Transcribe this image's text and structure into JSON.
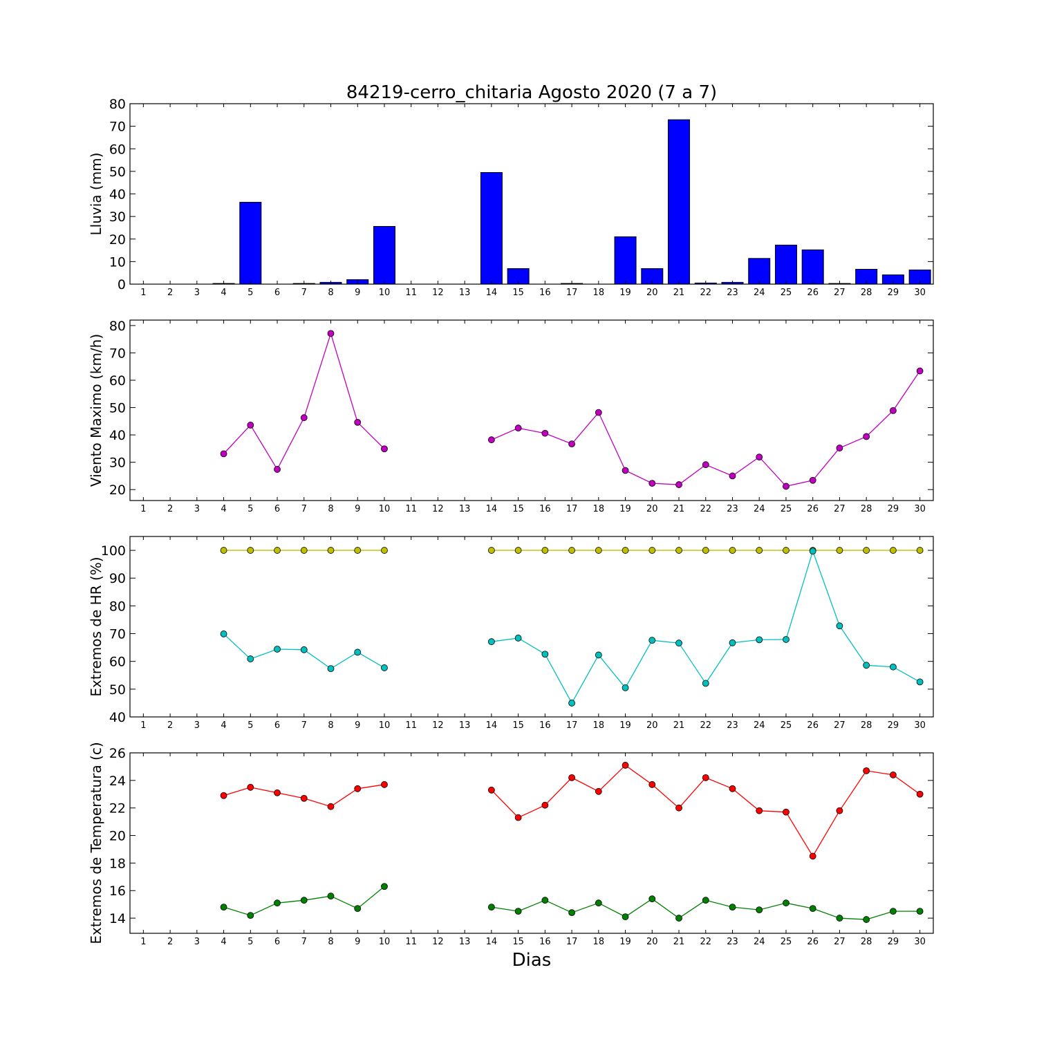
{
  "title": "84219-cerro_chitaria Agosto 2020  (7 a 7)",
  "xlabel": "Dias",
  "chart_data": [
    {
      "type": "bar",
      "ylabel": "Lluvia (mm)",
      "ylim": [
        0,
        80
      ],
      "yticks": [
        0,
        10,
        20,
        30,
        40,
        50,
        60,
        70,
        80
      ],
      "x": [
        1,
        2,
        3,
        4,
        5,
        6,
        7,
        8,
        9,
        10,
        11,
        12,
        13,
        14,
        15,
        16,
        17,
        18,
        19,
        20,
        21,
        22,
        23,
        24,
        25,
        26,
        27,
        28,
        29,
        30
      ],
      "series": [
        {
          "color": "#0000ff",
          "values": [
            0,
            0,
            0,
            0.3,
            36.3,
            0,
            0.3,
            0.8,
            2,
            25.6,
            0,
            0,
            0,
            49.5,
            6.9,
            0,
            0.3,
            0,
            21,
            6.9,
            72.9,
            0.5,
            0.8,
            11.4,
            17.3,
            15.2,
            0.3,
            6.6,
            4.1,
            6.3
          ]
        }
      ]
    },
    {
      "type": "line",
      "ylabel": "Viento Maximo (km/h)",
      "ylim": [
        16,
        82
      ],
      "yticks": [
        20,
        30,
        40,
        50,
        60,
        70,
        80
      ],
      "x": [
        1,
        2,
        3,
        4,
        5,
        6,
        7,
        8,
        9,
        10,
        11,
        12,
        13,
        14,
        15,
        16,
        17,
        18,
        19,
        20,
        21,
        22,
        23,
        24,
        25,
        26,
        27,
        28,
        29,
        30
      ],
      "series": [
        {
          "color": "#bf00bf",
          "values": [
            null,
            null,
            null,
            33.1,
            43.6,
            27.4,
            46.3,
            77.1,
            44.6,
            34.9,
            null,
            null,
            null,
            38.2,
            42.5,
            40.6,
            36.7,
            48.2,
            27,
            22.3,
            21.8,
            29.1,
            25,
            31.9,
            21.2,
            23.4,
            35.2,
            39.4,
            48.9,
            63.4
          ]
        }
      ]
    },
    {
      "type": "line",
      "ylabel": "Extremos de HR (%)",
      "ylim": [
        40,
        105
      ],
      "yticks": [
        40,
        50,
        60,
        70,
        80,
        90,
        100
      ],
      "x": [
        1,
        2,
        3,
        4,
        5,
        6,
        7,
        8,
        9,
        10,
        11,
        12,
        13,
        14,
        15,
        16,
        17,
        18,
        19,
        20,
        21,
        22,
        23,
        24,
        25,
        26,
        27,
        28,
        29,
        30
      ],
      "series": [
        {
          "color": "#bfbf00",
          "values": [
            null,
            null,
            null,
            100,
            100,
            100,
            100,
            100,
            100,
            100,
            null,
            null,
            null,
            100,
            100,
            100,
            100,
            100,
            100,
            100,
            100,
            100,
            100,
            100,
            100,
            100,
            100,
            100,
            100,
            100
          ]
        },
        {
          "color": "#00bfbf",
          "values": [
            null,
            null,
            null,
            69.9,
            60.9,
            64.4,
            64.2,
            57.4,
            63.3,
            57.7,
            null,
            null,
            null,
            67.1,
            68.4,
            62.6,
            45,
            62.3,
            50.5,
            67.6,
            66.6,
            52.1,
            66.7,
            67.8,
            67.9,
            99.7,
            72.8,
            58.6,
            58,
            52.6
          ]
        }
      ]
    },
    {
      "type": "line",
      "ylabel": "Extremos de Temperatura (c)",
      "ylim": [
        12.9,
        26
      ],
      "yticks": [
        14,
        16,
        18,
        20,
        22,
        24,
        26
      ],
      "x": [
        1,
        2,
        3,
        4,
        5,
        6,
        7,
        8,
        9,
        10,
        11,
        12,
        13,
        14,
        15,
        16,
        17,
        18,
        19,
        20,
        21,
        22,
        23,
        24,
        25,
        26,
        27,
        28,
        29,
        30
      ],
      "series": [
        {
          "color": "#ff0000",
          "values": [
            null,
            null,
            null,
            22.9,
            23.5,
            23.1,
            22.7,
            22.1,
            23.4,
            23.7,
            null,
            null,
            null,
            23.3,
            21.3,
            22.2,
            24.2,
            23.2,
            25.1,
            23.7,
            22,
            24.2,
            23.4,
            21.8,
            21.7,
            18.5,
            21.8,
            24.7,
            24.4,
            23
          ]
        },
        {
          "color": "#008000",
          "values": [
            null,
            null,
            null,
            14.8,
            14.2,
            15.1,
            15.3,
            15.6,
            14.7,
            16.3,
            null,
            null,
            null,
            14.8,
            14.5,
            15.3,
            14.4,
            15.1,
            14.1,
            15.4,
            14,
            15.3,
            14.8,
            14.6,
            15.1,
            14.7,
            14,
            13.9,
            14.5,
            14.5
          ]
        }
      ]
    }
  ]
}
